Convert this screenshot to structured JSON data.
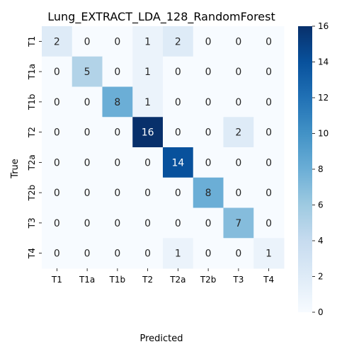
{
  "chart_data": {
    "type": "heatmap",
    "title": "Lung_EXTRACT_LDA_128_RandomForest",
    "xlabel": "Predicted",
    "ylabel": "True",
    "x_categories": [
      "T1",
      "T1a",
      "T1b",
      "T2",
      "T2a",
      "T2b",
      "T3",
      "T4"
    ],
    "y_categories": [
      "T1",
      "T1a",
      "T1b",
      "T2",
      "T2a",
      "T2b",
      "T3",
      "T4"
    ],
    "values": [
      [
        2,
        0,
        0,
        1,
        2,
        0,
        0,
        0
      ],
      [
        0,
        5,
        0,
        1,
        0,
        0,
        0,
        0
      ],
      [
        0,
        0,
        8,
        1,
        0,
        0,
        0,
        0
      ],
      [
        0,
        0,
        0,
        16,
        0,
        0,
        2,
        0
      ],
      [
        0,
        0,
        0,
        0,
        14,
        0,
        0,
        0
      ],
      [
        0,
        0,
        0,
        0,
        0,
        8,
        0,
        0
      ],
      [
        0,
        0,
        0,
        0,
        0,
        0,
        7,
        0
      ],
      [
        0,
        0,
        0,
        0,
        1,
        0,
        0,
        1
      ]
    ],
    "colorbar": {
      "min": 0,
      "max": 16,
      "ticks": [
        0,
        2,
        4,
        6,
        8,
        10,
        12,
        14,
        16
      ],
      "colormap": "Blues"
    }
  }
}
